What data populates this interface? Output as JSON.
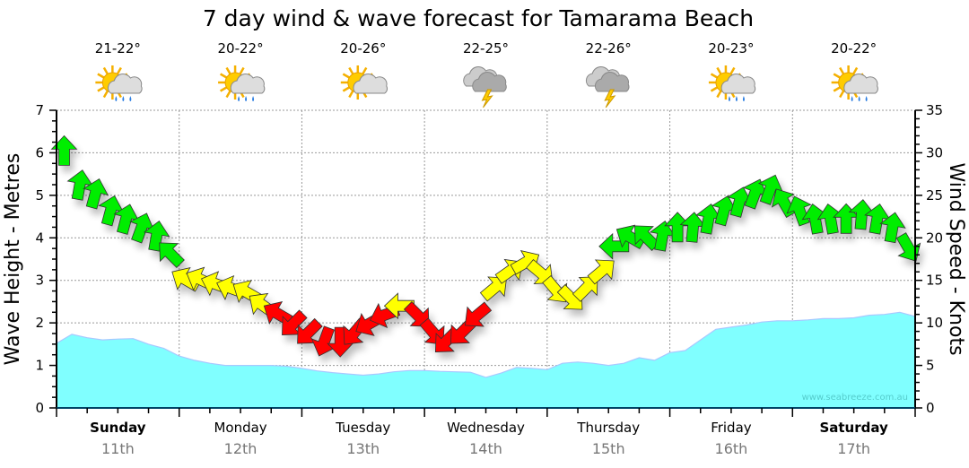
{
  "chart_data": {
    "type": "area+wind-arrows",
    "title": "7 day wind & wave forecast for Tamarama Beach",
    "ylabel_left": "Wave Height - Metres",
    "ylabel_right": "Wind Speed - Knots",
    "ylim_left": [
      0,
      7
    ],
    "ylim_right": [
      0,
      35
    ],
    "yticks_left": [
      "0",
      "1",
      "2",
      "3",
      "4",
      "5",
      "6",
      "7"
    ],
    "yticks_right": [
      "0",
      "5",
      "10",
      "15",
      "20",
      "25",
      "30",
      "35"
    ],
    "grid": true,
    "watermark": "www.seabreeze.com.au",
    "days": [
      {
        "day": "Sunday",
        "date": "11th",
        "temp": "21-22°",
        "weather": "sun-cloud-rain",
        "bold": true
      },
      {
        "day": "Monday",
        "date": "12th",
        "temp": "20-22°",
        "weather": "sun-cloud-rain",
        "bold": false
      },
      {
        "day": "Tuesday",
        "date": "13th",
        "temp": "20-26°",
        "weather": "sun-cloud",
        "bold": false
      },
      {
        "day": "Wednesday",
        "date": "14th",
        "temp": "22-25°",
        "weather": "thunderstorm",
        "bold": false
      },
      {
        "day": "Thursday",
        "date": "15th",
        "temp": "22-26°",
        "weather": "thunderstorm",
        "bold": false
      },
      {
        "day": "Friday",
        "date": "16th",
        "temp": "20-23°",
        "weather": "sun-cloud-rain",
        "bold": false
      },
      {
        "day": "Saturday",
        "date": "17th",
        "temp": "20-22°",
        "weather": "sun-cloud-rain",
        "bold": true
      }
    ],
    "wave_height_step_hours": 3,
    "wave_height_m": [
      1.52,
      1.73,
      1.65,
      1.6,
      1.62,
      1.63,
      1.5,
      1.4,
      1.22,
      1.12,
      1.05,
      1.0,
      1.0,
      1.0,
      1.0,
      0.98,
      0.93,
      0.87,
      0.83,
      0.8,
      0.77,
      0.8,
      0.85,
      0.88,
      0.88,
      0.86,
      0.85,
      0.84,
      0.72,
      0.82,
      0.95,
      0.93,
      0.9,
      1.05,
      1.08,
      1.05,
      1.0,
      1.05,
      1.18,
      1.12,
      1.3,
      1.35,
      1.6,
      1.85,
      1.9,
      1.95,
      2.02,
      2.05,
      2.05,
      2.07,
      2.1,
      2.1,
      2.12,
      2.18,
      2.2,
      2.25,
      2.15
    ],
    "wind_step_hours": 3,
    "wind_colors": {
      "g": "#00ee00",
      "y": "#ffff00",
      "r": "#ff0000"
    },
    "wind": [
      [
        30,
        0,
        "g"
      ],
      [
        26,
        10,
        "g"
      ],
      [
        25,
        15,
        "g"
      ],
      [
        23,
        15,
        "g"
      ],
      [
        22,
        15,
        "g"
      ],
      [
        21,
        20,
        "g"
      ],
      [
        20,
        10,
        "g"
      ],
      [
        18,
        315,
        "g"
      ],
      [
        15,
        300,
        "y"
      ],
      [
        15,
        295,
        "y"
      ],
      [
        14.5,
        290,
        "y"
      ],
      [
        14,
        290,
        "y"
      ],
      [
        13.5,
        300,
        "y"
      ],
      [
        12,
        305,
        "y"
      ],
      [
        11,
        300,
        "r"
      ],
      [
        10,
        225,
        "r"
      ],
      [
        9,
        225,
        "r"
      ],
      [
        8,
        200,
        "r"
      ],
      [
        8,
        180,
        "r"
      ],
      [
        9,
        220,
        "r"
      ],
      [
        10,
        240,
        "r"
      ],
      [
        11,
        250,
        "r"
      ],
      [
        12,
        270,
        "y"
      ],
      [
        11,
        135,
        "r"
      ],
      [
        9,
        140,
        "r"
      ],
      [
        8,
        225,
        "r"
      ],
      [
        9,
        225,
        "r"
      ],
      [
        11,
        230,
        "r"
      ],
      [
        14,
        50,
        "y"
      ],
      [
        16,
        55,
        "y"
      ],
      [
        17,
        60,
        "y"
      ],
      [
        16,
        130,
        "y"
      ],
      [
        14,
        140,
        "y"
      ],
      [
        13,
        135,
        "y"
      ],
      [
        14,
        45,
        "y"
      ],
      [
        16,
        50,
        "y"
      ],
      [
        19,
        270,
        "g"
      ],
      [
        20,
        300,
        "g"
      ],
      [
        20,
        315,
        "g"
      ],
      [
        20,
        10,
        "g"
      ],
      [
        21,
        0,
        "g"
      ],
      [
        21,
        5,
        "g"
      ],
      [
        22,
        10,
        "g"
      ],
      [
        23,
        15,
        "g"
      ],
      [
        24,
        15,
        "g"
      ],
      [
        25,
        20,
        "g"
      ],
      [
        25.5,
        20,
        "g"
      ],
      [
        24,
        330,
        "g"
      ],
      [
        23,
        340,
        "g"
      ],
      [
        22,
        350,
        "g"
      ],
      [
        22,
        350,
        "g"
      ],
      [
        22,
        0,
        "g"
      ],
      [
        22.5,
        5,
        "g"
      ],
      [
        22,
        10,
        "g"
      ],
      [
        21,
        10,
        "g"
      ],
      [
        19,
        150,
        "g"
      ]
    ],
    "wave_color": "#80ffff"
  }
}
